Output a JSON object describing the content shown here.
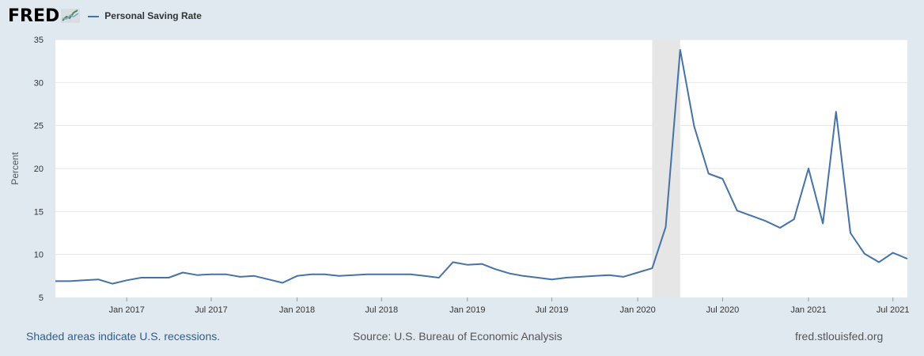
{
  "header": {
    "logo_text": "FRED",
    "logo_icon": "fred-graph-icon",
    "legend_label": "Personal Saving Rate"
  },
  "footer": {
    "recession_note": "Shaded areas indicate U.S. recessions.",
    "source": "Source: U.S. Bureau of Economic Analysis",
    "site": "fred.stlouisfed.org"
  },
  "colors": {
    "line": "#4572a7",
    "recession": "#e6e6e6",
    "grid": "#e6e6e6",
    "background": "#e1e9f0",
    "plot_background": "#ffffff"
  },
  "chart_data": {
    "type": "line",
    "ylabel": "Percent",
    "ylim": [
      5,
      35
    ],
    "yticks": [
      5,
      10,
      15,
      20,
      25,
      30,
      35
    ],
    "xlim": [
      "2016-08-01",
      "2021-08-01"
    ],
    "xticks": [
      {
        "date": "2017-01-01",
        "label": "Jan 2017"
      },
      {
        "date": "2017-07-01",
        "label": "Jul 2017"
      },
      {
        "date": "2018-01-01",
        "label": "Jan 2018"
      },
      {
        "date": "2018-07-01",
        "label": "Jul 2018"
      },
      {
        "date": "2019-01-01",
        "label": "Jan 2019"
      },
      {
        "date": "2019-07-01",
        "label": "Jul 2019"
      },
      {
        "date": "2020-01-01",
        "label": "Jan 2020"
      },
      {
        "date": "2020-07-01",
        "label": "Jul 2020"
      },
      {
        "date": "2021-01-01",
        "label": "Jan 2021"
      },
      {
        "date": "2021-07-01",
        "label": "Jul 2021"
      }
    ],
    "recessions": [
      {
        "start": "2020-02-01",
        "end": "2020-04-01"
      }
    ],
    "grid": true,
    "series": [
      {
        "name": "Personal Saving Rate",
        "x": [
          "2016-08-01",
          "2016-09-01",
          "2016-10-01",
          "2016-11-01",
          "2016-12-01",
          "2017-01-01",
          "2017-02-01",
          "2017-03-01",
          "2017-04-01",
          "2017-05-01",
          "2017-06-01",
          "2017-07-01",
          "2017-08-01",
          "2017-09-01",
          "2017-10-01",
          "2017-11-01",
          "2017-12-01",
          "2018-01-01",
          "2018-02-01",
          "2018-03-01",
          "2018-04-01",
          "2018-05-01",
          "2018-06-01",
          "2018-07-01",
          "2018-08-01",
          "2018-09-01",
          "2018-10-01",
          "2018-11-01",
          "2018-12-01",
          "2019-01-01",
          "2019-02-01",
          "2019-03-01",
          "2019-04-01",
          "2019-05-01",
          "2019-06-01",
          "2019-07-01",
          "2019-08-01",
          "2019-09-01",
          "2019-10-01",
          "2019-11-01",
          "2019-12-01",
          "2020-01-01",
          "2020-02-01",
          "2020-03-01",
          "2020-04-01",
          "2020-05-01",
          "2020-06-01",
          "2020-07-01",
          "2020-08-01",
          "2020-09-01",
          "2020-10-01",
          "2020-11-01",
          "2020-12-01",
          "2021-01-01",
          "2021-02-01",
          "2021-03-01",
          "2021-04-01",
          "2021-05-01",
          "2021-06-01",
          "2021-07-01",
          "2021-08-01"
        ],
        "values": [
          6.9,
          6.9,
          7.0,
          7.1,
          6.6,
          7.0,
          7.3,
          7.3,
          7.3,
          7.9,
          7.6,
          7.7,
          7.7,
          7.4,
          7.5,
          7.1,
          6.7,
          7.5,
          7.7,
          7.7,
          7.5,
          7.6,
          7.7,
          7.7,
          7.7,
          7.7,
          7.5,
          7.3,
          9.1,
          8.8,
          8.9,
          8.3,
          7.8,
          7.5,
          7.3,
          7.1,
          7.3,
          7.4,
          7.5,
          7.6,
          7.4,
          7.9,
          8.4,
          13.2,
          33.8,
          24.9,
          19.4,
          18.8,
          15.1,
          14.5,
          13.9,
          13.1,
          14.1,
          20.0,
          13.6,
          26.6,
          12.5,
          10.1,
          9.1,
          10.2,
          9.5
        ]
      }
    ]
  }
}
